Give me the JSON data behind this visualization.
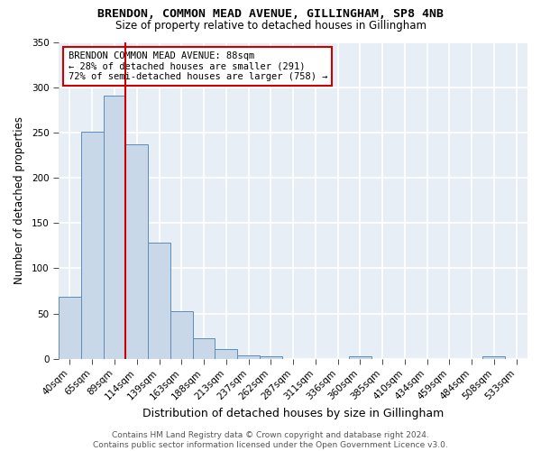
{
  "title": "BRENDON, COMMON MEAD AVENUE, GILLINGHAM, SP8 4NB",
  "subtitle": "Size of property relative to detached houses in Gillingham",
  "xlabel": "Distribution of detached houses by size in Gillingham",
  "ylabel": "Number of detached properties",
  "bar_labels": [
    "40sqm",
    "65sqm",
    "89sqm",
    "114sqm",
    "139sqm",
    "163sqm",
    "188sqm",
    "213sqm",
    "237sqm",
    "262sqm",
    "287sqm",
    "311sqm",
    "336sqm",
    "360sqm",
    "385sqm",
    "410sqm",
    "434sqm",
    "459sqm",
    "484sqm",
    "508sqm",
    "533sqm"
  ],
  "bar_values": [
    69,
    251,
    291,
    237,
    128,
    53,
    23,
    11,
    4,
    3,
    0,
    0,
    0,
    3,
    0,
    0,
    0,
    0,
    0,
    3,
    0
  ],
  "bar_color": "#C8D8E8",
  "bar_edge_color": "#5B8DB8",
  "highlight_index": 2,
  "highlight_line_color": "#CC0000",
  "annotation_text": "BRENDON COMMON MEAD AVENUE: 88sqm\n← 28% of detached houses are smaller (291)\n72% of semi-detached houses are larger (758) →",
  "annotation_box_color": "#ffffff",
  "annotation_box_edge_color": "#CC0000",
  "ylim": [
    0,
    350
  ],
  "yticks": [
    0,
    50,
    100,
    150,
    200,
    250,
    300,
    350
  ],
  "background_color": "#E8EEF5",
  "grid_color": "#ffffff",
  "footer_text": "Contains HM Land Registry data © Crown copyright and database right 2024.\nContains public sector information licensed under the Open Government Licence v3.0.",
  "title_fontsize": 9.5,
  "subtitle_fontsize": 8.5,
  "xlabel_fontsize": 9,
  "ylabel_fontsize": 8.5,
  "tick_fontsize": 7.5,
  "annotation_fontsize": 7.5,
  "footer_fontsize": 6.5
}
